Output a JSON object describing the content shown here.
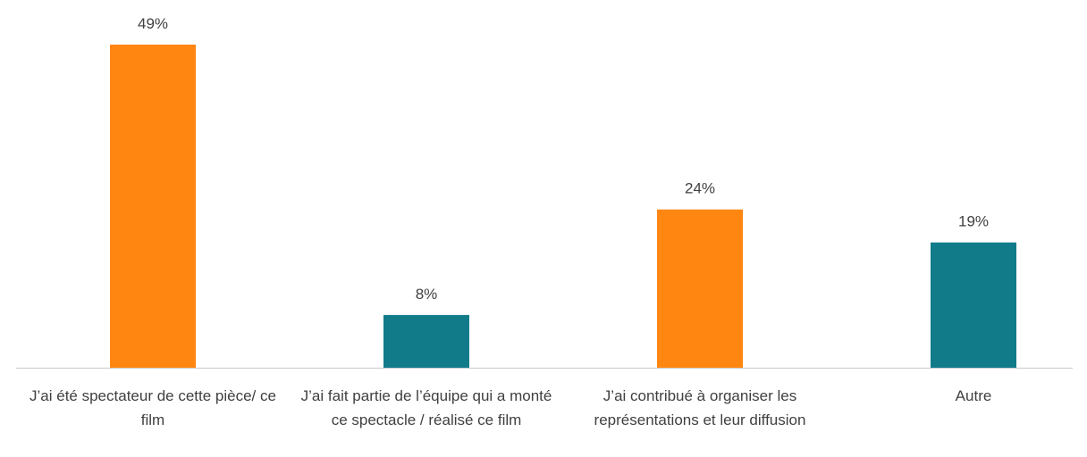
{
  "chart_data": {
    "type": "bar",
    "categories": [
      "J’ai été spectateur de cette pièce/ ce film",
      "J’ai fait partie de l’équipe qui a monté ce spectacle / réalisé ce film",
      "J’ai contribué à organiser les représentations et leur diffusion",
      "Autre"
    ],
    "values": [
      49,
      8,
      24,
      19
    ],
    "value_labels": [
      "49%",
      "8%",
      "24%",
      "19%"
    ],
    "colors": [
      "#ff8611",
      "#117b8a",
      "#ff8611",
      "#117b8a"
    ]
  }
}
